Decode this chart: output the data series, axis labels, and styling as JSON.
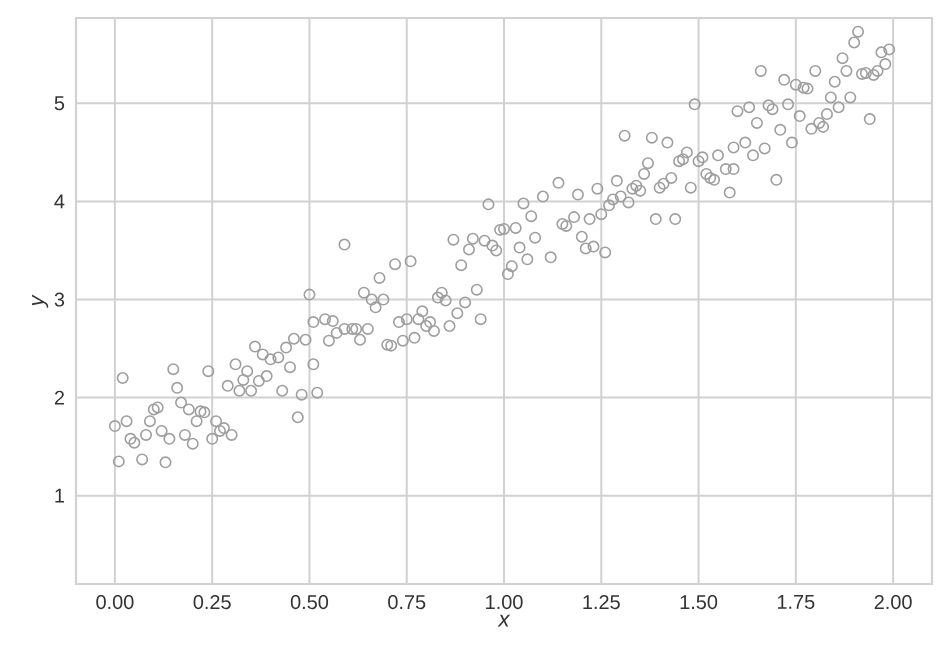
{
  "chart_data": {
    "type": "scatter",
    "xlabel": "x",
    "ylabel": "y",
    "xlim": [
      -0.1,
      2.1
    ],
    "ylim": [
      0.1,
      5.87
    ],
    "xticks": [
      {
        "value": 0,
        "label": "0.00"
      },
      {
        "value": 0.25,
        "label": "0.25"
      },
      {
        "value": 0.5,
        "label": "0.50"
      },
      {
        "value": 0.75,
        "label": "0.75"
      },
      {
        "value": 1,
        "label": "1.00"
      },
      {
        "value": 1.25,
        "label": "1.25"
      },
      {
        "value": 1.5,
        "label": "1.50"
      },
      {
        "value": 1.75,
        "label": "1.75"
      },
      {
        "value": 2,
        "label": "2.00"
      }
    ],
    "yticks": [
      1,
      2,
      3,
      4,
      5
    ],
    "grid": true,
    "marker": "circle",
    "color": "#9e9e9e",
    "x": [
      0.02,
      0.0,
      0.03,
      0.01,
      0.04,
      0.05,
      0.07,
      0.08,
      0.09,
      0.1,
      0.11,
      0.12,
      0.13,
      0.14,
      0.15,
      0.16,
      0.17,
      0.18,
      0.19,
      0.2,
      0.21,
      0.22,
      0.23,
      0.24,
      0.25,
      0.26,
      0.27,
      0.28,
      0.29,
      0.3,
      0.31,
      0.32,
      0.33,
      0.34,
      0.35,
      0.36,
      0.37,
      0.38,
      0.39,
      0.4,
      0.42,
      0.43,
      0.44,
      0.45,
      0.46,
      0.47,
      0.48,
      0.49,
      0.51,
      0.51,
      0.52,
      0.5,
      0.54,
      0.56,
      0.55,
      0.57,
      0.59,
      0.59,
      0.61,
      0.62,
      0.63,
      0.64,
      0.65,
      0.66,
      0.67,
      0.68,
      0.69,
      0.7,
      0.71,
      0.72,
      0.73,
      0.74,
      0.75,
      0.76,
      0.77,
      0.78,
      0.79,
      0.8,
      0.81,
      0.82,
      0.83,
      0.84,
      0.85,
      0.86,
      0.87,
      0.88,
      0.89,
      0.9,
      0.91,
      0.92,
      0.93,
      0.94,
      0.95,
      0.96,
      0.97,
      0.98,
      0.99,
      1.0,
      1.01,
      1.02,
      1.03,
      1.04,
      1.05,
      1.06,
      1.07,
      1.08,
      1.1,
      1.12,
      1.14,
      1.15,
      1.16,
      1.18,
      1.19,
      1.2,
      1.21,
      1.22,
      1.23,
      1.24,
      1.25,
      1.26,
      1.27,
      1.28,
      1.29,
      1.3,
      1.31,
      1.32,
      1.33,
      1.34,
      1.35,
      1.36,
      1.37,
      1.38,
      1.39,
      1.4,
      1.41,
      1.42,
      1.43,
      1.44,
      1.45,
      1.46,
      1.47,
      1.48,
      1.49,
      1.5,
      1.51,
      1.52,
      1.53,
      1.54,
      1.55,
      1.57,
      1.58,
      1.59,
      1.59,
      1.6,
      1.62,
      1.63,
      1.64,
      1.65,
      1.66,
      1.67,
      1.68,
      1.69,
      1.7,
      1.71,
      1.72,
      1.73,
      1.74,
      1.75,
      1.76,
      1.77,
      1.78,
      1.79,
      1.8,
      1.81,
      1.82,
      1.83,
      1.84,
      1.85,
      1.86,
      1.87,
      1.88,
      1.89,
      1.9,
      1.91,
      1.92,
      1.93,
      1.94,
      1.95,
      1.96,
      1.97,
      1.98,
      1.99
    ],
    "values": [
      2.2,
      1.71,
      1.76,
      1.35,
      1.58,
      1.54,
      1.37,
      1.62,
      1.76,
      1.88,
      1.9,
      1.66,
      1.34,
      1.58,
      2.29,
      2.1,
      1.95,
      1.62,
      1.88,
      1.53,
      1.76,
      1.86,
      1.85,
      2.27,
      1.58,
      1.76,
      1.66,
      1.69,
      2.12,
      1.62,
      2.34,
      2.07,
      2.18,
      2.27,
      2.07,
      2.52,
      2.17,
      2.44,
      2.22,
      2.39,
      2.41,
      2.07,
      2.51,
      2.31,
      2.6,
      1.8,
      2.03,
      2.59,
      2.77,
      2.34,
      2.05,
      3.05,
      2.8,
      2.78,
      2.58,
      2.66,
      3.56,
      2.7,
      2.7,
      2.7,
      2.59,
      3.07,
      2.7,
      3.0,
      2.92,
      3.22,
      3.0,
      2.54,
      2.53,
      3.36,
      2.77,
      2.58,
      2.8,
      3.39,
      2.61,
      2.8,
      2.88,
      2.73,
      2.77,
      2.68,
      3.02,
      3.07,
      2.99,
      2.73,
      3.61,
      2.86,
      3.35,
      2.97,
      3.51,
      3.62,
      3.1,
      2.8,
      3.6,
      3.97,
      3.55,
      3.5,
      3.71,
      3.72,
      3.26,
      3.34,
      3.73,
      3.53,
      3.98,
      3.41,
      3.85,
      3.63,
      4.05,
      3.43,
      4.19,
      3.77,
      3.75,
      3.84,
      4.07,
      3.64,
      3.52,
      3.82,
      3.54,
      4.13,
      3.87,
      3.48,
      3.96,
      4.02,
      4.21,
      4.05,
      4.67,
      3.99,
      4.13,
      4.16,
      4.11,
      4.28,
      4.39,
      4.65,
      3.82,
      4.14,
      4.18,
      4.6,
      4.24,
      3.82,
      4.41,
      4.43,
      4.5,
      4.14,
      4.99,
      4.41,
      4.45,
      4.28,
      4.24,
      4.22,
      4.47,
      4.33,
      4.09,
      4.33,
      4.55,
      4.92,
      4.6,
      4.96,
      4.47,
      4.8,
      5.33,
      4.54,
      4.98,
      4.94,
      4.22,
      4.73,
      5.24,
      4.99,
      4.6,
      5.19,
      4.87,
      5.16,
      5.15,
      4.74,
      5.33,
      4.8,
      4.76,
      4.89,
      5.06,
      5.22,
      4.96,
      5.46,
      5.33,
      5.06,
      5.62,
      5.73,
      5.3,
      5.31,
      4.84,
      5.29,
      5.33,
      5.52,
      5.4,
      5.55
    ]
  }
}
